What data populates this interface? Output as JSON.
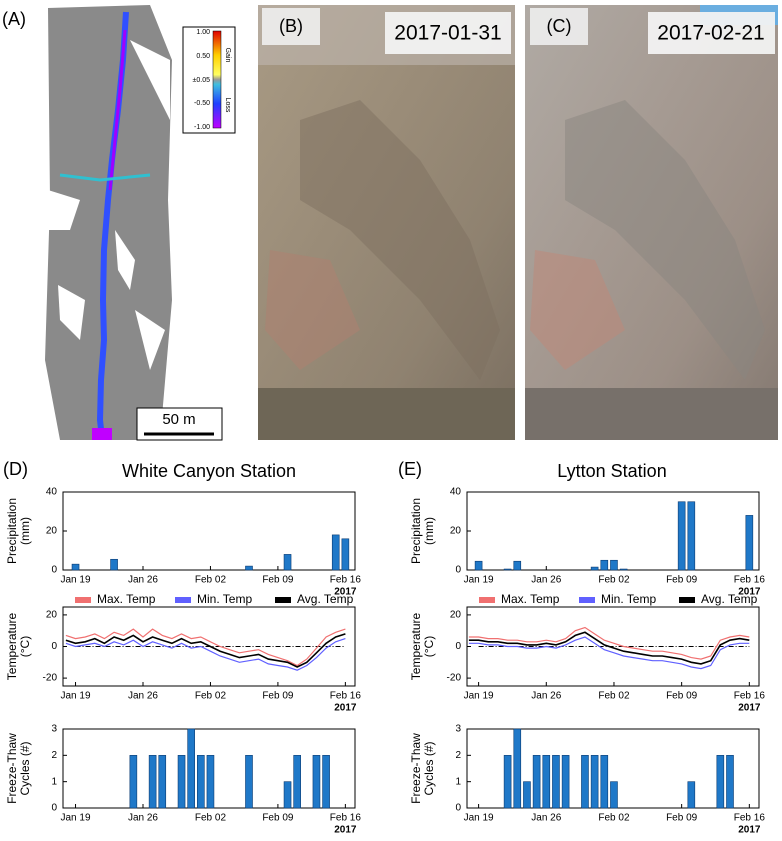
{
  "panels": {
    "a": {
      "label": "(A)",
      "scale_bar": "50 m",
      "colorbar_labels": [
        "1.00",
        "0.50",
        "±0.05",
        "-0.50",
        "-1.00"
      ],
      "gain": "Gain",
      "loss": "Loss"
    },
    "b": {
      "label": "(B)",
      "date": "2017-01-31"
    },
    "c": {
      "label": "(C)",
      "date": "2017-02-21"
    }
  },
  "stations": [
    {
      "label": "(D)",
      "title": "White Canyon Station"
    },
    {
      "label": "(E)",
      "title": "Lytton Station"
    }
  ],
  "chart_data": [
    {
      "type": "bar",
      "ylabel": [
        "Precipitation",
        "(mm)"
      ],
      "color": "#1f78c8",
      "x": [
        19,
        23,
        37,
        41,
        46,
        47
      ],
      "values": [
        3,
        5.5,
        2,
        8,
        18,
        16
      ],
      "xlim": [
        17.7,
        48
      ],
      "xticks": [
        {
          "value": 19,
          "label": "Jan 19"
        },
        {
          "value": 26,
          "label": "Jan 26"
        },
        {
          "value": 33,
          "label": "Feb 02"
        },
        {
          "value": 40,
          "label": "Feb 09"
        },
        {
          "value": 47,
          "label": "Feb 16"
        }
      ],
      "x_note": "2017",
      "ylim": [
        0,
        40
      ],
      "yticks": [
        0,
        20,
        40
      ]
    },
    {
      "type": "line",
      "ylabel": [
        "Temperature",
        "(°C)"
      ],
      "legend": "top",
      "hline": 0,
      "x": [
        18,
        19,
        20,
        21,
        22,
        23,
        24,
        25,
        26,
        27,
        28,
        29,
        30,
        31,
        32,
        33,
        34,
        35,
        36,
        37,
        38,
        39,
        40,
        41,
        42,
        43,
        44,
        45,
        46,
        47
      ],
      "series": [
        {
          "name": "Max. Temp",
          "color": "#f07070",
          "values": [
            7,
            5,
            6,
            8,
            5,
            9,
            7,
            11,
            6,
            11,
            7,
            5,
            8,
            5,
            6,
            3,
            0,
            -2,
            -4,
            -3,
            -2,
            -5,
            -7,
            -9,
            -12,
            -8,
            -1,
            6,
            9,
            11
          ]
        },
        {
          "name": "Min. Temp",
          "color": "#6060ff",
          "values": [
            2,
            0,
            1,
            2,
            0,
            3,
            1,
            4,
            0,
            3,
            1,
            -1,
            2,
            -1,
            0,
            -3,
            -6,
            -8,
            -10,
            -9,
            -8,
            -11,
            -12,
            -13,
            -15,
            -12,
            -7,
            -1,
            3,
            5
          ]
        },
        {
          "name": "Avg. Temp",
          "color": "#000000",
          "values": [
            4,
            2,
            3,
            5,
            2,
            6,
            4,
            7,
            3,
            6,
            4,
            2,
            5,
            2,
            3,
            0,
            -3,
            -5,
            -7,
            -6,
            -5,
            -8,
            -9,
            -10,
            -13,
            -10,
            -4,
            2,
            6,
            8
          ]
        }
      ],
      "xlim": [
        17.7,
        48
      ],
      "xticks": [
        {
          "value": 19,
          "label": "Jan 19"
        },
        {
          "value": 26,
          "label": "Jan 26"
        },
        {
          "value": 33,
          "label": "Feb 02"
        },
        {
          "value": 40,
          "label": "Feb 09"
        },
        {
          "value": 47,
          "label": "Feb 16"
        }
      ],
      "x_note": "2017",
      "ylim": [
        -25,
        25
      ],
      "yticks": [
        -20,
        0,
        20
      ]
    },
    {
      "type": "bar",
      "ylabel": [
        "Freeze-Thaw",
        "Cycles (#)"
      ],
      "color": "#1f78c8",
      "x": [
        25,
        27,
        28,
        30,
        31,
        32,
        33,
        37,
        41,
        42,
        44,
        45
      ],
      "values": [
        2,
        2,
        2,
        2,
        3,
        2,
        2,
        2,
        1,
        2,
        2,
        2
      ],
      "xlim": [
        17.7,
        48
      ],
      "xticks": [
        {
          "value": 19,
          "label": "Jan 19"
        },
        {
          "value": 26,
          "label": "Jan 26"
        },
        {
          "value": 33,
          "label": "Feb 02"
        },
        {
          "value": 40,
          "label": "Feb 09"
        },
        {
          "value": 47,
          "label": "Feb 16"
        }
      ],
      "x_note": "2017",
      "ylim": [
        0,
        3
      ],
      "yticks": [
        0,
        1,
        2,
        3
      ]
    },
    {
      "type": "bar",
      "ylabel": [
        "Precipitation",
        "(mm)"
      ],
      "color": "#1f78c8",
      "x": [
        19,
        22,
        23,
        31,
        32,
        33,
        34,
        40,
        41,
        47
      ],
      "values": [
        4.5,
        0.5,
        4.5,
        1.5,
        5,
        5,
        0.5,
        35,
        35,
        28
      ],
      "xlim": [
        17.8,
        48
      ],
      "xticks": [
        {
          "value": 19,
          "label": "Jan 19"
        },
        {
          "value": 26,
          "label": "Jan 26"
        },
        {
          "value": 33,
          "label": "Feb 02"
        },
        {
          "value": 40,
          "label": "Feb 09"
        },
        {
          "value": 47,
          "label": "Feb 16"
        }
      ],
      "x_note": "2017",
      "ylim": [
        0,
        40
      ],
      "yticks": [
        0,
        20,
        40
      ]
    },
    {
      "type": "line",
      "ylabel": [
        "Temperature",
        "(°C)"
      ],
      "legend": "top",
      "hline": 0,
      "x": [
        18,
        19,
        20,
        21,
        22,
        23,
        24,
        25,
        26,
        27,
        28,
        29,
        30,
        31,
        32,
        33,
        34,
        35,
        36,
        37,
        38,
        39,
        40,
        41,
        42,
        43,
        44,
        45,
        46,
        47
      ],
      "series": [
        {
          "name": "Max. Temp",
          "color": "#f07070",
          "values": [
            6,
            6,
            5,
            5,
            4,
            4,
            3,
            3,
            4,
            3,
            5,
            10,
            12,
            8,
            4,
            2,
            0,
            -1,
            -2,
            -3,
            -3,
            -4,
            -5,
            -7,
            -8,
            -6,
            4,
            6,
            7,
            6
          ]
        },
        {
          "name": "Min. Temp",
          "color": "#6060ff",
          "values": [
            2,
            2,
            1,
            1,
            0,
            0,
            -1,
            -1,
            0,
            -1,
            1,
            4,
            6,
            2,
            -2,
            -4,
            -6,
            -7,
            -8,
            -9,
            -9,
            -10,
            -11,
            -13,
            -14,
            -12,
            -2,
            1,
            2,
            2
          ]
        },
        {
          "name": "Avg. Temp",
          "color": "#000000",
          "values": [
            4,
            4,
            3,
            3,
            2,
            2,
            1,
            1,
            2,
            1,
            3,
            7,
            9,
            5,
            1,
            -1,
            -3,
            -4,
            -5,
            -6,
            -6,
            -7,
            -8,
            -10,
            -11,
            -9,
            1,
            4,
            5,
            4
          ]
        }
      ],
      "xlim": [
        17.8,
        48
      ],
      "xticks": [
        {
          "value": 19,
          "label": "Jan 19"
        },
        {
          "value": 26,
          "label": "Jan 26"
        },
        {
          "value": 33,
          "label": "Feb 02"
        },
        {
          "value": 40,
          "label": "Feb 09"
        },
        {
          "value": 47,
          "label": "Feb 16"
        }
      ],
      "x_note": "2017",
      "ylim": [
        -25,
        25
      ],
      "yticks": [
        -20,
        0,
        20
      ]
    },
    {
      "type": "bar",
      "ylabel": [
        "Freeze-Thaw",
        "Cycles (#)"
      ],
      "color": "#1f78c8",
      "x": [
        22,
        23,
        24,
        25,
        26,
        27,
        28,
        30,
        31,
        32,
        33,
        41,
        44,
        45
      ],
      "values": [
        2,
        3,
        1,
        2,
        2,
        2,
        2,
        2,
        2,
        2,
        1,
        1,
        2,
        2
      ],
      "xlim": [
        17.8,
        48
      ],
      "xticks": [
        {
          "value": 19,
          "label": "Jan 19"
        },
        {
          "value": 26,
          "label": "Jan 26"
        },
        {
          "value": 33,
          "label": "Feb 02"
        },
        {
          "value": 40,
          "label": "Feb 09"
        },
        {
          "value": 47,
          "label": "Feb 16"
        }
      ],
      "x_note": "2017",
      "ylim": [
        0,
        3
      ],
      "yticks": [
        0,
        1,
        2,
        3
      ]
    }
  ]
}
